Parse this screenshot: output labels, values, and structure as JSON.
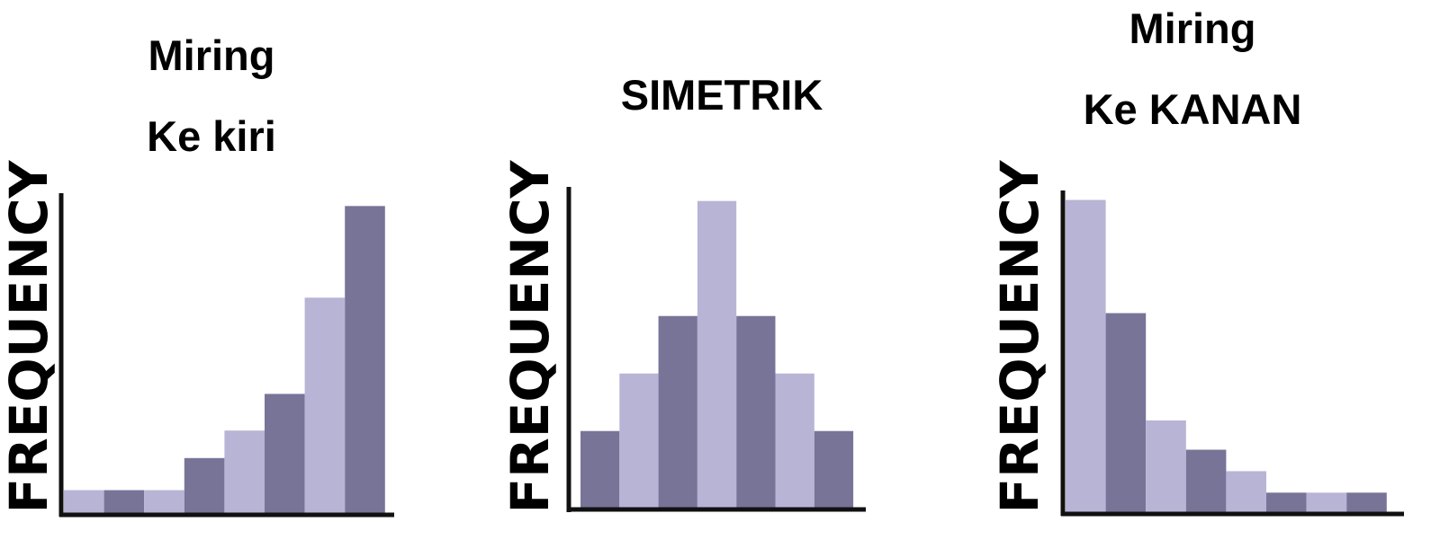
{
  "colors": {
    "light_bar": "#b8b4d6",
    "dark_bar": "#787498",
    "axis": "#111111",
    "text": "#000000"
  },
  "chart_data": [
    {
      "type": "bar",
      "title_lines": [
        "Miring",
        "Ke kiri"
      ],
      "ylabel": "FREQUENCY",
      "xlabel": "",
      "values": [
        1,
        1,
        1,
        2.4,
        3.6,
        5.2,
        9.4,
        13.4
      ],
      "bar_shades": [
        "light",
        "dark",
        "light",
        "dark",
        "light",
        "dark",
        "light",
        "dark"
      ],
      "ylim": [
        0,
        14
      ],
      "grid": false,
      "legend": "none"
    },
    {
      "type": "bar",
      "title_lines": [
        "SIMETRIK"
      ],
      "ylabel": "FREQUENCY",
      "xlabel": "",
      "values": [
        4,
        7,
        10,
        16,
        10,
        7,
        4
      ],
      "bar_shades": [
        "dark",
        "light",
        "dark",
        "light",
        "dark",
        "light",
        "dark"
      ],
      "ylim": [
        0,
        16.5
      ],
      "grid": false,
      "legend": "none"
    },
    {
      "type": "bar",
      "title_lines": [
        "Miring",
        "Ke KANAN"
      ],
      "ylabel": "FREQUENCY",
      "xlabel": "",
      "values": [
        16,
        10.2,
        4.7,
        3.2,
        2.1,
        1,
        1,
        1
      ],
      "bar_shades": [
        "light",
        "dark",
        "light",
        "dark",
        "light",
        "dark",
        "light",
        "dark"
      ],
      "ylim": [
        0,
        16.3
      ],
      "grid": false,
      "legend": "none"
    }
  ]
}
